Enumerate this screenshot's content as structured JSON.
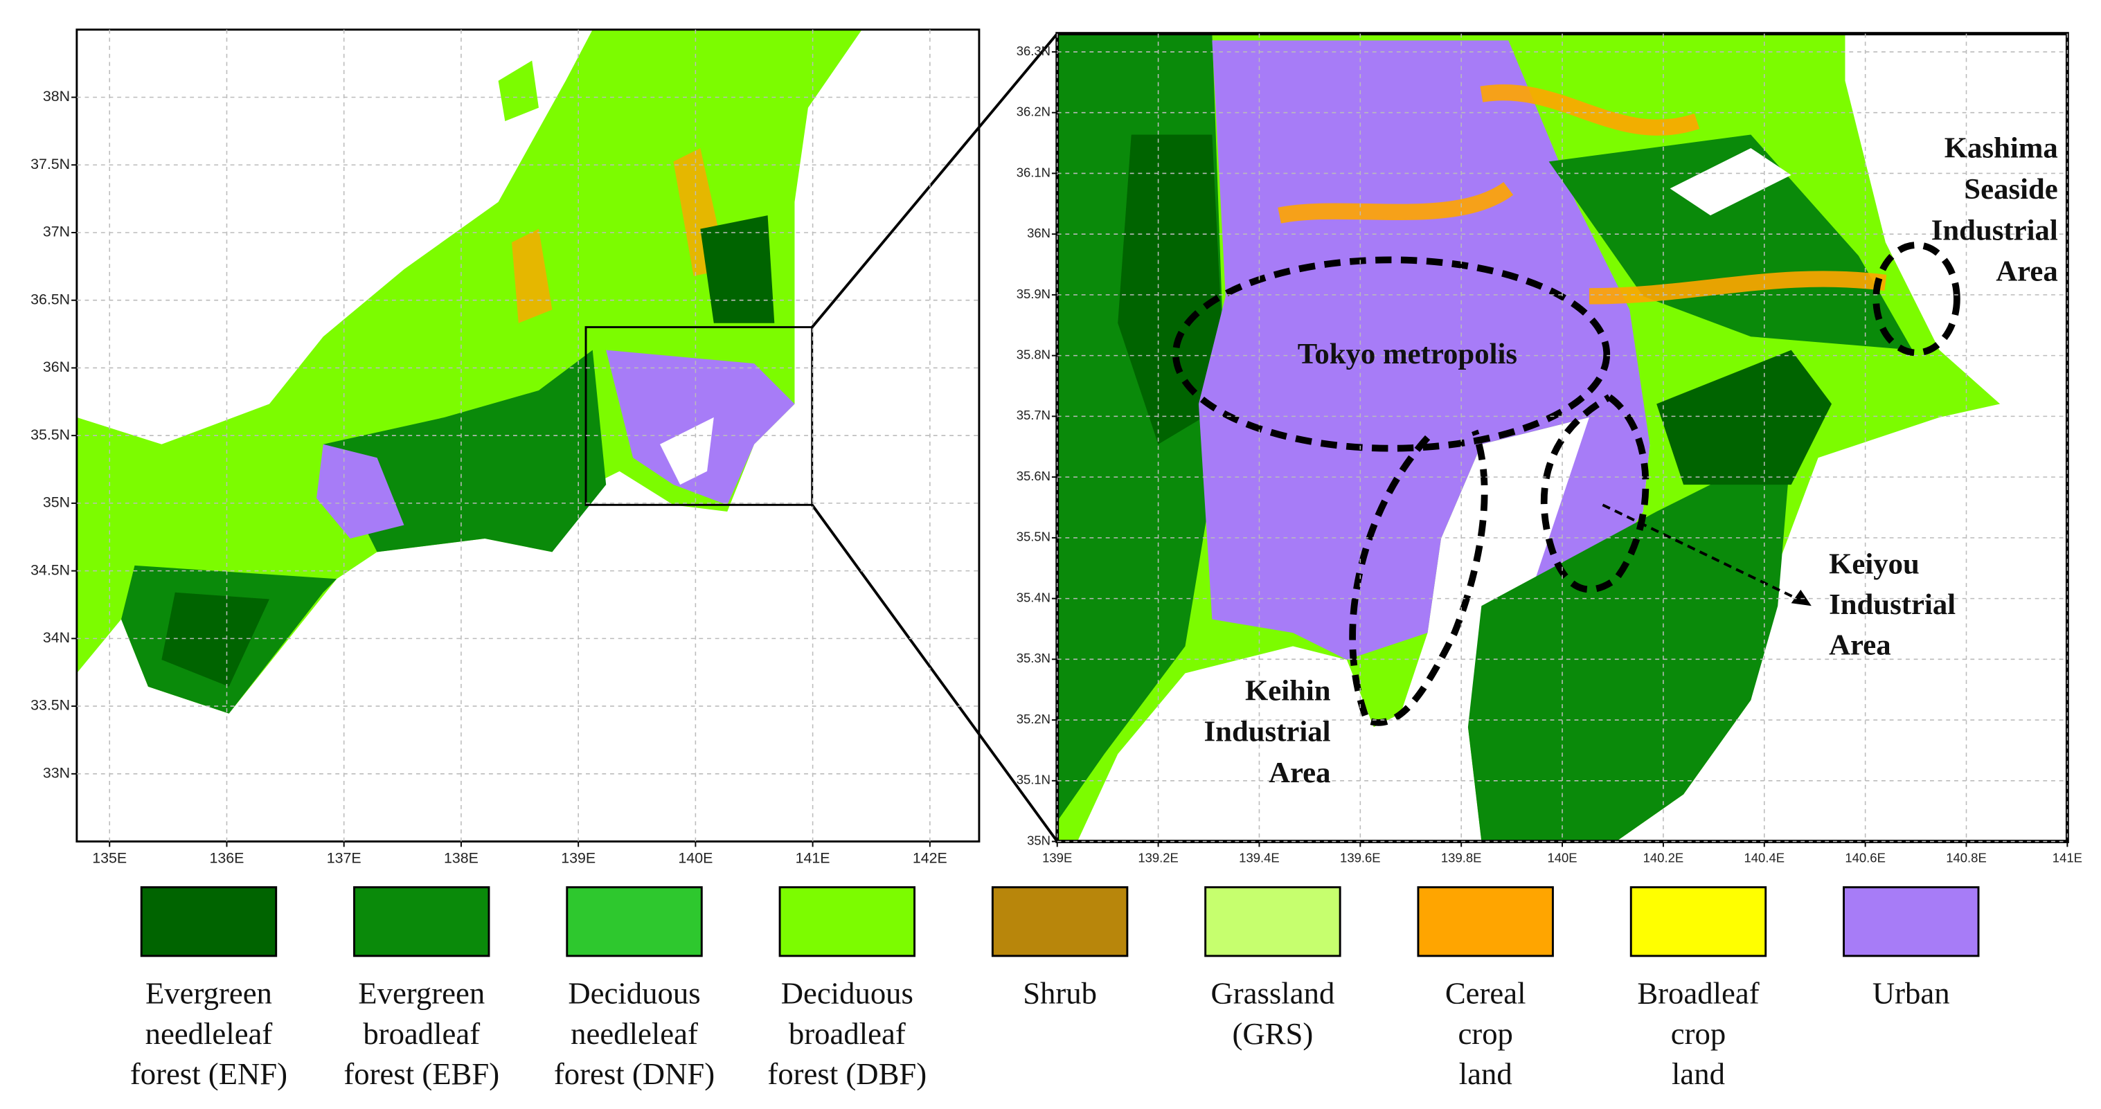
{
  "maps": [
    {
      "xlim": [
        134.72,
        142.42
      ],
      "ylim": [
        32.5,
        38.5
      ],
      "xticks": [
        {
          "value": 135,
          "label": "135E"
        },
        {
          "value": 136,
          "label": "136E"
        },
        {
          "value": 137,
          "label": "137E"
        },
        {
          "value": 138,
          "label": "138E"
        },
        {
          "value": 139,
          "label": "139E"
        },
        {
          "value": 140,
          "label": "140E"
        },
        {
          "value": 141,
          "label": "141E"
        },
        {
          "value": 142,
          "label": "142E"
        }
      ],
      "yticks": [
        {
          "value": 33,
          "label": "33N"
        },
        {
          "value": 33.5,
          "label": "33.5N"
        },
        {
          "value": 34,
          "label": "34N"
        },
        {
          "value": 34.5,
          "label": "34.5N"
        },
        {
          "value": 35,
          "label": "35N"
        },
        {
          "value": 35.5,
          "label": "35.5N"
        },
        {
          "value": 36,
          "label": "36N"
        },
        {
          "value": 36.5,
          "label": "36.5N"
        },
        {
          "value": 37,
          "label": "37N"
        },
        {
          "value": 37.5,
          "label": "37.5N"
        },
        {
          "value": 38,
          "label": "38N"
        }
      ]
    },
    {
      "xlim": [
        139,
        141
      ],
      "ylim": [
        35,
        36.33
      ],
      "xticks": [
        {
          "value": 139,
          "label": "139E"
        },
        {
          "value": 139.2,
          "label": "139.2E"
        },
        {
          "value": 139.4,
          "label": "139.4E"
        },
        {
          "value": 139.6,
          "label": "139.6E"
        },
        {
          "value": 139.8,
          "label": "139.8E"
        },
        {
          "value": 140,
          "label": "140E"
        },
        {
          "value": 140.2,
          "label": "140.2E"
        },
        {
          "value": 140.4,
          "label": "140.4E"
        },
        {
          "value": 140.6,
          "label": "140.6E"
        },
        {
          "value": 140.8,
          "label": "140.8E"
        },
        {
          "value": 141,
          "label": "141E"
        }
      ],
      "yticks": [
        {
          "value": 35,
          "label": "35N"
        },
        {
          "value": 35.1,
          "label": "35.1N"
        },
        {
          "value": 35.2,
          "label": "35.2N"
        },
        {
          "value": 35.3,
          "label": "35.3N"
        },
        {
          "value": 35.4,
          "label": "35.4N"
        },
        {
          "value": 35.5,
          "label": "35.5N"
        },
        {
          "value": 35.6,
          "label": "35.6N"
        },
        {
          "value": 35.7,
          "label": "35.7N"
        },
        {
          "value": 35.8,
          "label": "35.8N"
        },
        {
          "value": 35.9,
          "label": "35.9N"
        },
        {
          "value": 36,
          "label": "36N"
        },
        {
          "value": 36.1,
          "label": "36.1N"
        },
        {
          "value": 36.2,
          "label": "36.2N"
        },
        {
          "value": 36.3,
          "label": "36.3N"
        }
      ]
    }
  ],
  "annotations": [
    {
      "lines": [
        "Tokyo metropolis"
      ]
    },
    {
      "lines": [
        "Kashima",
        "Seaside",
        "Industrial",
        "Area"
      ]
    },
    {
      "lines": [
        "Keihin",
        "Industrial",
        "Area"
      ]
    },
    {
      "lines": [
        "Keiyou",
        "Industrial",
        "Area"
      ]
    }
  ],
  "legend": [
    {
      "lines": [
        "Evergreen",
        "needleleaf",
        "forest (ENF)"
      ],
      "color": "#006400"
    },
    {
      "lines": [
        "Evergreen",
        "broadleaf",
        "forest (EBF)"
      ],
      "color": "#0a8a0a"
    },
    {
      "lines": [
        "Deciduous",
        "needleleaf",
        "forest (DNF)"
      ],
      "color": "#2ec82e"
    },
    {
      "lines": [
        "Deciduous",
        "broadleaf",
        "forest (DBF)"
      ],
      "color": "#7cfc00"
    },
    {
      "lines": [
        "Shrub"
      ],
      "color": "#b8860b"
    },
    {
      "lines": [
        "Grassland",
        "(GRS)"
      ],
      "color": "#c6ff6e"
    },
    {
      "lines": [
        "Cereal",
        "crop",
        "land"
      ],
      "color": "#ffa500"
    },
    {
      "lines": [
        "Broadleaf",
        "crop",
        "land"
      ],
      "color": "#ffff00"
    },
    {
      "lines": [
        "Urban"
      ],
      "color": "#a77cf7"
    }
  ]
}
